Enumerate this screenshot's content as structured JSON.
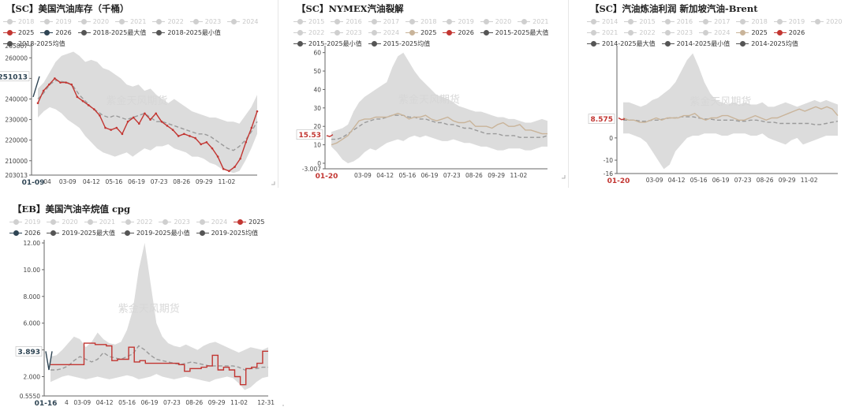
{
  "chart_data": [
    {
      "type": "line",
      "id": "c1",
      "title": "【SC】美国汽油库存（千桶）",
      "legend": [
        {
          "label": "2018",
          "active": false
        },
        {
          "label": "2019",
          "active": false
        },
        {
          "label": "2020",
          "active": false
        },
        {
          "label": "2021",
          "active": false
        },
        {
          "label": "2022",
          "active": false
        },
        {
          "label": "2023",
          "active": false
        },
        {
          "label": "2024",
          "active": false
        },
        {
          "label": "2025",
          "active": true,
          "color": "#c23531"
        },
        {
          "label": "2026",
          "active": true,
          "color": "#2f4554"
        },
        {
          "label": "2018-2025最大值",
          "active": true,
          "color": "#555555"
        },
        {
          "label": "2018-2025最小值",
          "active": true,
          "color": "#555555"
        },
        {
          "label": "2018-2025均值",
          "active": true,
          "color": "#555555"
        }
      ],
      "ylim": [
        203013,
        265867
      ],
      "y_ticks": [
        "265867",
        "260000",
        "250000",
        "240000",
        "230000",
        "220000",
        "210000",
        "203013"
      ],
      "y_tick_values": [
        265867,
        260000,
        250000,
        240000,
        230000,
        220000,
        210000,
        203013
      ],
      "x_labels": [
        "04",
        "03-09",
        "04-12",
        "05-16",
        "06-19",
        "07-23",
        "08-26",
        "09-29",
        "11-02"
      ],
      "x_label_pos": [
        0.07,
        0.16,
        0.265,
        0.365,
        0.465,
        0.565,
        0.665,
        0.765,
        0.865
      ],
      "x_current": "01-09",
      "current_value": "251013",
      "current_numeric": 251013,
      "band_max": [
        245000,
        248000,
        253000,
        258000,
        261000,
        262000,
        263000,
        261000,
        258000,
        259000,
        258000,
        255000,
        254000,
        252000,
        250000,
        247000,
        246000,
        247000,
        244000,
        245000,
        242000,
        240000,
        238000,
        240000,
        238000,
        236000,
        234000,
        233000,
        232000,
        231000,
        231000,
        230000,
        229000,
        229000,
        228000,
        232000,
        236000,
        242000
      ],
      "band_min": [
        231000,
        234000,
        236000,
        235000,
        233000,
        230000,
        228000,
        226000,
        222000,
        219000,
        216000,
        214000,
        213000,
        212000,
        213000,
        214000,
        212000,
        214000,
        216000,
        215000,
        217000,
        217000,
        218000,
        216000,
        215000,
        214000,
        212000,
        212000,
        211000,
        209000,
        208000,
        206000,
        205000,
        204000,
        205000,
        210000,
        216000,
        223000
      ],
      "mean": [
        240000,
        243000,
        247000,
        249000,
        248500,
        248000,
        246000,
        242000,
        239000,
        236000,
        234000,
        232000,
        231000,
        232000,
        231000,
        230000,
        231000,
        232000,
        233000,
        231000,
        229000,
        229000,
        228000,
        227000,
        226000,
        225000,
        224000,
        223000,
        223000,
        222000,
        220000,
        218000,
        216000,
        215000,
        217000,
        220000,
        224000,
        229000
      ],
      "series_2025": [
        238000,
        244000,
        247000,
        250000,
        248000,
        248000,
        247000,
        241000,
        239000,
        237000,
        235000,
        232000,
        226000,
        225000,
        226000,
        223000,
        229000,
        231000,
        228000,
        233000,
        230000,
        233000,
        229000,
        227000,
        225000,
        222000,
        223000,
        222000,
        221000,
        218000,
        219000,
        216000,
        212000,
        206000,
        205000,
        207000,
        211000,
        219000,
        226000,
        234000
      ],
      "series_2026": [
        241000,
        246000,
        251013
      ]
    },
    {
      "type": "line",
      "id": "c2",
      "title": "【SC】NYMEX汽油裂解",
      "legend": [
        {
          "label": "2015",
          "active": false
        },
        {
          "label": "2016",
          "active": false
        },
        {
          "label": "2017",
          "active": false
        },
        {
          "label": "2018",
          "active": false
        },
        {
          "label": "2019",
          "active": false
        },
        {
          "label": "2020",
          "active": false
        },
        {
          "label": "2021",
          "active": false
        },
        {
          "label": "2022",
          "active": false
        },
        {
          "label": "2023",
          "active": false
        },
        {
          "label": "2024",
          "active": false
        },
        {
          "label": "2025",
          "active": true,
          "color": "#c9b49a"
        },
        {
          "label": "2026",
          "active": true,
          "color": "#c23531"
        },
        {
          "label": "2015-2025最大值",
          "active": true,
          "color": "#555555"
        },
        {
          "label": "2015-2025最小值",
          "active": true,
          "color": "#555555"
        },
        {
          "label": "2015-2025均值",
          "active": true,
          "color": "#555555"
        }
      ],
      "ylim": [
        -3.007,
        62
      ],
      "y_ticks": [
        "60",
        "50",
        "40",
        "30",
        "20",
        "10",
        "0",
        "-3.007"
      ],
      "y_tick_values": [
        60,
        50,
        40,
        30,
        20,
        10,
        0,
        -3.007
      ],
      "x_labels": [
        "03-09",
        "04-12",
        "05-16",
        "06-19",
        "07-23",
        "08-26",
        "09-29",
        "11-02"
      ],
      "x_label_pos": [
        0.17,
        0.27,
        0.37,
        0.47,
        0.57,
        0.67,
        0.77,
        0.87
      ],
      "x_current": "01-20",
      "current_value": "15.53",
      "current_numeric": 15.53,
      "band_max": [
        17,
        18,
        19,
        21,
        28,
        33,
        36,
        38,
        40,
        42,
        44,
        52,
        58,
        60,
        55,
        50,
        46,
        43,
        40,
        37,
        36,
        35,
        33,
        31,
        30,
        29,
        28,
        28,
        27,
        26,
        25,
        25,
        24,
        24,
        23,
        22,
        22,
        23,
        24,
        23
      ],
      "band_min": [
        9,
        6,
        2,
        0,
        1,
        3,
        6,
        8,
        7,
        9,
        11,
        12,
        13,
        12,
        14,
        15,
        14,
        15,
        14,
        13,
        12,
        12,
        13,
        12,
        11,
        11,
        10,
        9,
        9,
        8,
        7,
        7,
        8,
        8,
        8,
        7,
        7,
        8,
        9,
        9
      ],
      "mean": [
        13,
        13,
        14,
        16,
        18,
        20,
        22,
        23,
        24,
        24,
        25,
        26,
        26,
        26,
        25,
        25,
        24,
        24,
        23,
        22,
        22,
        21,
        21,
        20,
        19,
        19,
        18,
        17,
        16,
        16,
        16,
        15,
        15,
        15,
        14,
        14,
        14,
        14,
        14,
        15
      ],
      "series_2025": [
        10,
        11,
        13,
        15,
        19,
        23,
        24,
        24,
        25,
        25,
        25,
        26,
        27,
        26,
        24,
        25,
        25,
        26,
        24,
        23,
        24,
        25,
        23,
        22,
        22,
        23,
        20,
        20,
        20,
        19,
        21,
        22,
        20,
        20,
        21,
        18,
        18,
        17,
        16,
        16
      ],
      "series_2026": [
        15,
        14.5,
        15.53
      ]
    },
    {
      "type": "line",
      "id": "c3",
      "title": "【SC】汽油炼油利润 新加坡汽油-Brent",
      "legend": [
        {
          "label": "2014",
          "active": false
        },
        {
          "label": "2015",
          "active": false
        },
        {
          "label": "2016",
          "active": false
        },
        {
          "label": "2017",
          "active": false
        },
        {
          "label": "2018",
          "active": false
        },
        {
          "label": "2019",
          "active": false
        },
        {
          "label": "2020",
          "active": false
        },
        {
          "label": "2021",
          "active": false
        },
        {
          "label": "2022",
          "active": false
        },
        {
          "label": "2023",
          "active": false
        },
        {
          "label": "2024",
          "active": false
        },
        {
          "label": "2025",
          "active": true,
          "color": "#c9b49a"
        },
        {
          "label": "2026",
          "active": true,
          "color": "#c23531"
        },
        {
          "label": "2014-2025最大值",
          "active": true,
          "color": "#555555"
        },
        {
          "label": "2014-2025最小值",
          "active": true,
          "color": "#555555"
        },
        {
          "label": "2014-2025均值",
          "active": true,
          "color": "#555555"
        }
      ],
      "ylim": [
        -16,
        40
      ],
      "y_ticks": [
        "0",
        "-10",
        "-16"
      ],
      "y_tick_values": [
        0,
        -10,
        -16
      ],
      "x_labels": [
        "03-09",
        "04-12",
        "05-16",
        "06-19",
        "07-23",
        "08-26",
        "09-29",
        "11-02"
      ],
      "x_label_pos": [
        0.17,
        0.27,
        0.37,
        0.47,
        0.57,
        0.67,
        0.77,
        0.87
      ],
      "x_current": "01-20",
      "current_value": "8.575",
      "current_numeric": 8.575,
      "band_max": [
        16,
        16,
        15,
        14,
        15,
        17,
        18,
        20,
        22,
        25,
        30,
        35,
        38,
        32,
        25,
        20,
        17,
        16,
        15,
        16,
        15,
        16,
        15,
        15,
        16,
        14,
        14,
        15,
        16,
        15,
        14,
        15,
        16,
        17,
        16,
        17,
        16,
        15
      ],
      "band_min": [
        2,
        2,
        1,
        0,
        -2,
        -6,
        -10,
        -14,
        -12,
        -6,
        -3,
        0,
        1,
        1,
        2,
        2,
        2,
        1,
        1,
        2,
        2,
        2,
        1,
        1,
        2,
        0,
        -1,
        -2,
        -3,
        -1,
        0,
        -3,
        -2,
        -1,
        0,
        1,
        1,
        1
      ],
      "mean": [
        8,
        8,
        8,
        7.5,
        7.5,
        8,
        8,
        8.5,
        9,
        9,
        9.5,
        9.5,
        9.5,
        9,
        8.5,
        8.5,
        8,
        8,
        8,
        8,
        7.5,
        7.5,
        8,
        8,
        7.5,
        7,
        7,
        6.5,
        6.5,
        6.5,
        6.5,
        6.5,
        6.5,
        6,
        6,
        6.5,
        7,
        7.5
      ],
      "series_2025": [
        9,
        8,
        8,
        7,
        7,
        8,
        9,
        8,
        9,
        9,
        9,
        10,
        10,
        11,
        9,
        8,
        9,
        9,
        10,
        10,
        9,
        8,
        8,
        9,
        10,
        9,
        8,
        9,
        9,
        10,
        11,
        12,
        13,
        12,
        13,
        14,
        13,
        14,
        13,
        10
      ],
      "series_2026": [
        9,
        8.2,
        8.575
      ]
    },
    {
      "type": "line",
      "id": "c4",
      "title": "【EB】美国汽油辛烷值 cpg",
      "legend": [
        {
          "label": "2019",
          "active": false
        },
        {
          "label": "2020",
          "active": false
        },
        {
          "label": "2021",
          "active": false
        },
        {
          "label": "2022",
          "active": false
        },
        {
          "label": "2023",
          "active": false
        },
        {
          "label": "2024",
          "active": false
        },
        {
          "label": "2025",
          "active": true,
          "color": "#c23531"
        },
        {
          "label": "2026",
          "active": true,
          "color": "#2f4554"
        },
        {
          "label": "2019-2025最大值",
          "active": true,
          "color": "#555555"
        },
        {
          "label": "2019-2025最小值",
          "active": true,
          "color": "#555555"
        },
        {
          "label": "2019-2025均值",
          "active": true,
          "color": "#555555"
        }
      ],
      "ylim": [
        0.555,
        12
      ],
      "y_ticks": [
        "12.00",
        "10.00",
        "8.000",
        "6.000",
        "4.000",
        "2.000",
        "0.5550"
      ],
      "y_tick_values": [
        12,
        10,
        8,
        6,
        4,
        2,
        0.555
      ],
      "x_labels": [
        "4",
        "03-09",
        "04-12",
        "05-16",
        "06-19",
        "07-23",
        "08-26",
        "09-29",
        "11-02",
        "12-31"
      ],
      "x_label_pos": [
        0.1,
        0.17,
        0.27,
        0.37,
        0.47,
        0.57,
        0.67,
        0.77,
        0.87,
        0.99
      ],
      "x_current": "01-16",
      "current_value": "3.893",
      "current_numeric": 3.893,
      "band_max": [
        3.5,
        3.6,
        4,
        4.5,
        5,
        4.8,
        4.2,
        4.6,
        5.3,
        4.8,
        4.5,
        4.4,
        4.6,
        5.5,
        7,
        10,
        12,
        9,
        6,
        5,
        4.5,
        4.3,
        4.2,
        4.4,
        4.2,
        4,
        4.3,
        4.5,
        4.6,
        4.4,
        4.2,
        4,
        3.8,
        4,
        4.2,
        4.1,
        4,
        4.2
      ],
      "band_min": [
        1.6,
        1.8,
        2,
        2.1,
        2,
        1.9,
        1.8,
        1.9,
        2,
        1.9,
        1.8,
        1.9,
        2,
        2.1,
        2,
        1.8,
        1.9,
        2,
        2.2,
        2,
        1.9,
        1.8,
        1.9,
        2,
        1.9,
        1.8,
        1.7,
        1.6,
        1.8,
        1.9,
        2,
        1.9,
        1.5,
        1,
        1.2,
        1.6,
        1.9,
        2
      ],
      "mean": [
        2.5,
        2.5,
        2.6,
        2.8,
        3.2,
        3.5,
        3.3,
        3.1,
        3.3,
        3.8,
        3.5,
        3.4,
        3.3,
        3.5,
        3.7,
        4.3,
        4,
        3.6,
        3.3,
        3.2,
        3.1,
        3,
        2.9,
        3,
        3.1,
        3,
        2.9,
        2.8,
        2.8,
        2.8,
        2.8,
        2.8,
        2.7,
        2.5,
        2.6,
        2.6,
        2.7,
        2.7
      ],
      "series_2025": [
        2.9,
        2.9,
        2.9,
        2.9,
        2.9,
        2.9,
        4.5,
        4.5,
        4.4,
        4.4,
        4.3,
        3.2,
        3.3,
        3.3,
        4.2,
        3.1,
        3.2,
        3.0,
        3.0,
        3.0,
        3.0,
        3.0,
        3.0,
        2.9,
        2.4,
        2.6,
        2.6,
        2.7,
        2.8,
        3.6,
        2.5,
        2.7,
        2.5,
        2.0,
        1.4,
        2.6,
        2.7,
        3.0,
        3.9,
        3.9
      ],
      "series_2026": [
        3.893,
        2.5,
        3.893
      ]
    }
  ],
  "watermark": "紫金天风期货"
}
